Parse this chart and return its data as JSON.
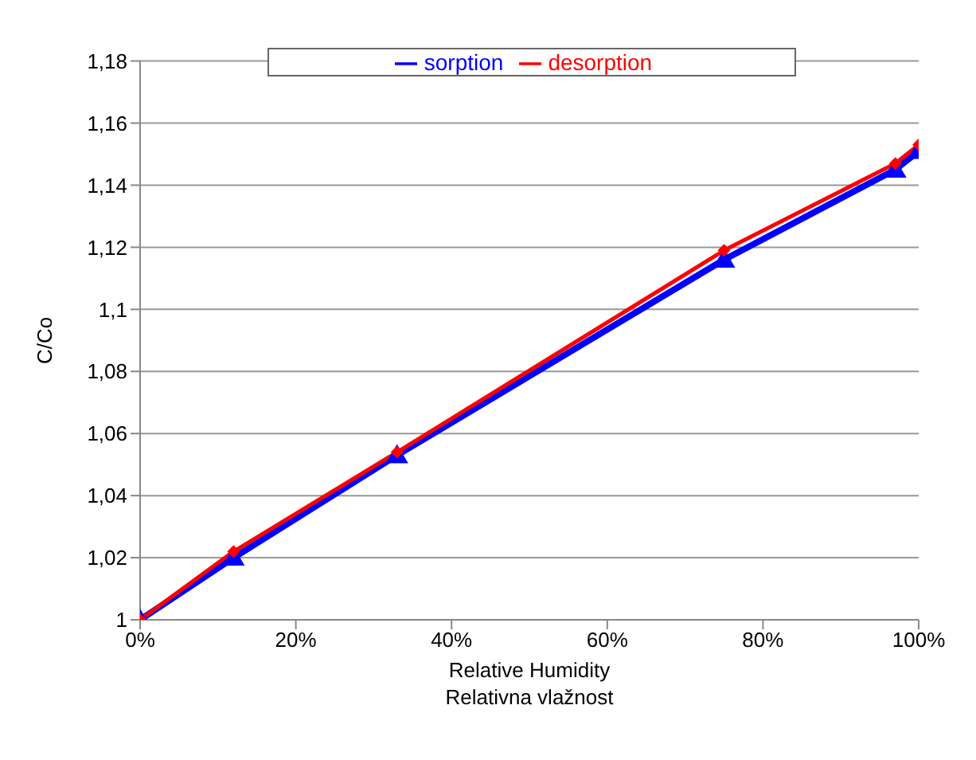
{
  "chart_data": {
    "type": "line",
    "ylabel": "C/Co",
    "xlabel": "Relative Humidity\nRelativna vlažnost",
    "x": [
      0,
      0.12,
      0.33,
      0.75,
      0.97,
      1.0
    ],
    "series": [
      {
        "name": "sorption",
        "color": "#0000ff",
        "marker": "triangle",
        "values": [
          1,
          1.02,
          1.053,
          1.116,
          1.145,
          1.151
        ]
      },
      {
        "name": "desorption",
        "color": "#ff0000",
        "marker": "diamond",
        "values": [
          1,
          1.022,
          1.054,
          1.119,
          1.147,
          1.153
        ]
      }
    ],
    "xlim": [
      0,
      1
    ],
    "xticks": [
      {
        "value": 0,
        "label": "0%"
      },
      {
        "value": 0.2,
        "label": "20%"
      },
      {
        "value": 0.4,
        "label": "40%"
      },
      {
        "value": 0.6,
        "label": "60%"
      },
      {
        "value": 0.8,
        "label": "80%"
      },
      {
        "value": 1,
        "label": "100%"
      }
    ],
    "ylim": [
      1,
      1.18
    ],
    "yticks": [
      1,
      {
        "value": 1.02,
        "label": "1,02"
      },
      {
        "value": 1.04,
        "label": "1,04"
      },
      {
        "value": 1.06,
        "label": "1,06"
      },
      {
        "value": 1.08,
        "label": "1,08"
      },
      {
        "value": 1.1,
        "label": "1,1"
      },
      {
        "value": 1.12,
        "label": "1,12"
      },
      {
        "value": 1.14,
        "label": "1,14"
      },
      {
        "value": 1.16,
        "label": "1,16"
      },
      {
        "value": 1.18,
        "label": "1,18"
      }
    ],
    "grid": "y",
    "legend": "top",
    "line_style": "solid"
  }
}
